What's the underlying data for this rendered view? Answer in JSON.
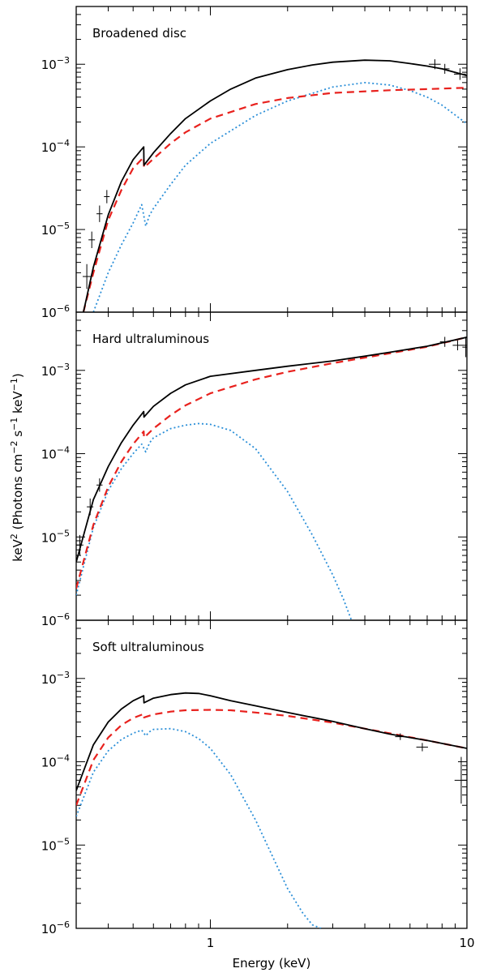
{
  "chart_data": {
    "type": "line",
    "xscale": "log",
    "yscale": "log",
    "xlim": [
      0.3,
      10
    ],
    "ylim": [
      1e-06,
      0.005
    ],
    "xlabel": "Energy (keV)",
    "ylabel": {
      "pre": "keV",
      "sup1": "2",
      "mid1": " (Photons cm",
      "sup2": "−2",
      "mid2": " s",
      "sup3": "−1",
      "mid3": " keV",
      "sup4": "−1",
      "post": ")"
    },
    "xticklabels": [
      {
        "value": 1,
        "label": "1"
      },
      {
        "value": 10,
        "label": "10"
      }
    ],
    "yticklabels": [
      {
        "value": 1e-06,
        "base": "10",
        "exp": "−6"
      },
      {
        "value": 1e-05,
        "base": "10",
        "exp": "−5"
      },
      {
        "value": 0.0001,
        "base": "10",
        "exp": "−4"
      },
      {
        "value": 0.001,
        "base": "10",
        "exp": "−3"
      }
    ],
    "colors": {
      "total": "#000000",
      "dashed": "#e8211d",
      "dotted": "#2b8fd8",
      "data": "#000000"
    },
    "panels": [
      {
        "title": "Broadened disc",
        "total": {
          "x": [
            0.32,
            0.35,
            0.4,
            0.45,
            0.5,
            0.55,
            0.551,
            0.6,
            0.7,
            0.8,
            1.0,
            1.2,
            1.5,
            2.0,
            2.5,
            3.0,
            4.0,
            5.0,
            6.0,
            7.0,
            8.0,
            10.0
          ],
          "y": [
            1e-06,
            3.5e-06,
            1.5e-05,
            3.8e-05,
            7e-05,
            0.0001,
            6e-05,
            8.5e-05,
            0.000145,
            0.00022,
            0.00036,
            0.0005,
            0.00068,
            0.00086,
            0.00098,
            0.00106,
            0.00112,
            0.0011,
            0.00102,
            0.00095,
            0.00088,
            0.00073
          ]
        },
        "dashed": {
          "x": [
            0.32,
            0.35,
            0.4,
            0.45,
            0.5,
            0.55,
            0.551,
            0.6,
            0.7,
            0.8,
            1.0,
            1.5,
            2.0,
            3.0,
            5.0,
            7.0,
            10.0
          ],
          "y": [
            1e-06,
            3e-06,
            1.3e-05,
            3e-05,
            5.5e-05,
            7.5e-05,
            5.6e-05,
            7.2e-05,
            0.00011,
            0.00015,
            0.00022,
            0.00033,
            0.00039,
            0.00045,
            0.000485,
            0.0005,
            0.00052
          ]
        },
        "dotted": {
          "x": [
            0.35,
            0.4,
            0.45,
            0.5,
            0.54,
            0.56,
            0.58,
            0.6,
            0.7,
            0.8,
            1.0,
            1.5,
            2.0,
            3.0,
            4.0,
            5.0,
            6.0,
            7.0,
            8.0,
            10.0
          ],
          "y": [
            1e-06,
            3e-06,
            6.5e-06,
            1.2e-05,
            2e-05,
            1.1e-05,
            1.5e-05,
            1.8e-05,
            3.5e-05,
            6e-05,
            0.00011,
            0.00024,
            0.00036,
            0.00053,
            0.0006,
            0.00056,
            0.00048,
            0.0004,
            0.00032,
            0.00019
          ]
        },
        "errbars": [
          {
            "x": 0.33,
            "y": 2.7e-06,
            "dx": 0.012,
            "dy": 0.15
          },
          {
            "x": 0.345,
            "y": 7.5e-06,
            "dx": 0.01,
            "dy": 0.1
          },
          {
            "x": 0.37,
            "y": 1.55e-05,
            "dx": 0.01,
            "dy": 0.1
          },
          {
            "x": 0.395,
            "y": 2.5e-05,
            "dx": 0.01,
            "dy": 0.08
          },
          {
            "x": 7.5,
            "y": 0.001,
            "dx": 0.4,
            "dy": 0.06
          },
          {
            "x": 8.2,
            "y": 0.00088,
            "dx": 0.35,
            "dy": 0.06
          },
          {
            "x": 9.4,
            "y": 0.00076,
            "dx": 0.5,
            "dy": 0.07
          }
        ]
      },
      {
        "title": "Hard ultraluminous",
        "total": {
          "x": [
            0.3,
            0.35,
            0.4,
            0.45,
            0.5,
            0.55,
            0.551,
            0.6,
            0.7,
            0.8,
            1.0,
            1.5,
            2.0,
            3.0,
            4.0,
            5.0,
            7.0,
            10.0
          ],
          "y": [
            5e-06,
            2.8e-05,
            7e-05,
            0.000135,
            0.00022,
            0.00032,
            0.000275,
            0.00037,
            0.00053,
            0.00067,
            0.00085,
            0.001,
            0.00112,
            0.0013,
            0.00148,
            0.00165,
            0.00195,
            0.0025
          ]
        },
        "dashed": {
          "x": [
            0.3,
            0.35,
            0.4,
            0.45,
            0.5,
            0.55,
            0.551,
            0.6,
            0.7,
            0.8,
            1.0,
            1.5,
            2.0,
            3.0,
            4.0,
            5.0,
            7.0,
            10.0
          ],
          "y": [
            2.4e-06,
            1.4e-05,
            4e-05,
            8e-05,
            0.00013,
            0.000185,
            0.000155,
            0.0002,
            0.00029,
            0.00038,
            0.00053,
            0.00078,
            0.00096,
            0.00122,
            0.00142,
            0.0016,
            0.00192,
            0.0025
          ]
        },
        "dotted": {
          "x": [
            0.3,
            0.35,
            0.4,
            0.45,
            0.5,
            0.54,
            0.56,
            0.58,
            0.6,
            0.7,
            0.8,
            0.9,
            1.0,
            1.2,
            1.5,
            2.0,
            2.5,
            3.0,
            3.3,
            3.55
          ],
          "y": [
            2e-06,
            1.3e-05,
            3.6e-05,
            6.6e-05,
            0.0001,
            0.00013,
            0.000105,
            0.000135,
            0.000155,
            0.0002,
            0.00022,
            0.00023,
            0.000225,
            0.00019,
            0.000115,
            3.5e-05,
            1.05e-05,
            3.5e-06,
            1.8e-06,
            1e-06
          ]
        },
        "errbars": [
          {
            "x": 0.31,
            "y": 8e-06,
            "dx": 0.01,
            "dy": 0.12
          },
          {
            "x": 0.34,
            "y": 2.3e-05,
            "dx": 0.01,
            "dy": 0.1
          },
          {
            "x": 0.37,
            "y": 4.2e-05,
            "dx": 0.01,
            "dy": 0.08
          },
          {
            "x": 8.2,
            "y": 0.0022,
            "dx": 0.35,
            "dy": 0.06
          },
          {
            "x": 9.2,
            "y": 0.002,
            "dx": 0.4,
            "dy": 0.06
          },
          {
            "x": 9.9,
            "y": 0.0019,
            "dx": 0.3,
            "dy": 0.12
          }
        ]
      },
      {
        "title": "Soft ultraluminous",
        "total": {
          "x": [
            0.3,
            0.35,
            0.4,
            0.45,
            0.5,
            0.55,
            0.551,
            0.6,
            0.7,
            0.8,
            0.9,
            1.0,
            1.2,
            1.5,
            2.0,
            3.0,
            4.0,
            5.0,
            7.0,
            10.0
          ],
          "y": [
            4.5e-05,
            0.00016,
            0.0003,
            0.00043,
            0.00054,
            0.00062,
            0.00051,
            0.00058,
            0.00064,
            0.00067,
            0.00066,
            0.00062,
            0.00054,
            0.00047,
            0.00039,
            0.000305,
            0.00025,
            0.000215,
            0.00018,
            0.000145
          ]
        },
        "dashed": {
          "x": [
            0.3,
            0.35,
            0.4,
            0.45,
            0.5,
            0.55,
            0.551,
            0.6,
            0.7,
            0.8,
            1.0,
            1.2,
            1.5,
            2.0,
            3.0,
            5.0,
            7.0,
            10.0
          ],
          "y": [
            3e-05,
            0.000105,
            0.000195,
            0.000275,
            0.000335,
            0.000375,
            0.00034,
            0.00037,
            0.0004,
            0.000415,
            0.00042,
            0.000415,
            0.00039,
            0.000355,
            0.000295,
            0.00022,
            0.00018,
            0.000145
          ]
        },
        "dotted": {
          "x": [
            0.3,
            0.35,
            0.4,
            0.45,
            0.5,
            0.54,
            0.56,
            0.58,
            0.6,
            0.7,
            0.8,
            0.9,
            1.0,
            1.2,
            1.5,
            2.0,
            2.3,
            2.5,
            2.7
          ],
          "y": [
            2.2e-05,
            7.5e-05,
            0.000135,
            0.000185,
            0.00022,
            0.00024,
            0.000205,
            0.00023,
            0.000245,
            0.00025,
            0.00023,
            0.00019,
            0.000145,
            7e-05,
            2e-05,
            3e-06,
            1.5e-06,
            1.1e-06,
            1e-06
          ]
        },
        "errbars": [
          {
            "x": 5.5,
            "y": 0.0002,
            "dx": 0.25,
            "dy": 0.04
          },
          {
            "x": 6.7,
            "y": 0.00015,
            "dx": 0.35,
            "dy": 0.05
          },
          {
            "x": 9.5,
            "y": 6e-05,
            "dx": 0.55,
            "dy": 0.28
          }
        ]
      }
    ]
  }
}
